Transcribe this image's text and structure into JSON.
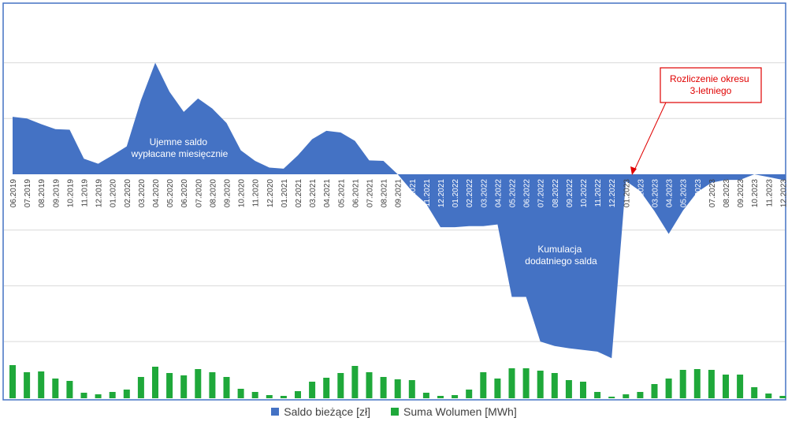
{
  "chart_data": {
    "type": "area",
    "categories": [
      "06.2019",
      "07.2019",
      "08.2019",
      "09.2019",
      "10.2019",
      "11.2019",
      "12.2019",
      "01.2020",
      "02.2020",
      "03.2020",
      "04.2020",
      "05.2020",
      "06.2020",
      "07.2020",
      "08.2020",
      "09.2020",
      "10.2020",
      "11.2020",
      "12.2020",
      "01.2021",
      "02.2021",
      "03.2021",
      "04.2021",
      "05.2021",
      "06.2021",
      "07.2021",
      "08.2021",
      "09.2021",
      "10.2021",
      "11.2021",
      "12.2021",
      "01.2022",
      "02.2022",
      "03.2022",
      "04.2022",
      "05.2022",
      "06.2022",
      "07.2022",
      "08.2022",
      "09.2022",
      "10.2022",
      "11.2022",
      "12.2022",
      "01.2023",
      "02.2023",
      "03.2023",
      "04.2023",
      "05.2023",
      "06.2023",
      "07.2023",
      "08.2023",
      "09.2023",
      "10.2023",
      "11.2023",
      "12.2023"
    ],
    "series": [
      {
        "name": "Saldo bieżące [zł]",
        "color": "#4472C4",
        "values": [
          1.03,
          1.0,
          0.9,
          0.81,
          0.8,
          0.28,
          0.19,
          0.34,
          0.5,
          1.33,
          2.0,
          1.48,
          1.12,
          1.36,
          1.18,
          0.92,
          0.43,
          0.24,
          0.12,
          0.1,
          0.34,
          0.63,
          0.78,
          0.75,
          0.6,
          0.25,
          0.24,
          0.0,
          -0.3,
          -0.53,
          -0.95,
          -0.95,
          -0.93,
          -0.93,
          -0.9,
          -2.2,
          -2.2,
          -3.0,
          -3.08,
          -3.12,
          -3.15,
          -3.18,
          -3.3,
          -0.12,
          -0.3,
          -0.66,
          -1.07,
          -0.65,
          -0.32,
          -0.15,
          -0.1,
          -0.1,
          0.0,
          -0.05,
          -0.1
        ]
      },
      {
        "name": "Suma Wolumen [MWh]",
        "color": "#1FA83A",
        "values": [
          42,
          33,
          34,
          25,
          22,
          7,
          5,
          8,
          11,
          27,
          40,
          32,
          29,
          37,
          33,
          27,
          12,
          8,
          4,
          3,
          9,
          21,
          26,
          32,
          41,
          33,
          27,
          24,
          23,
          7,
          3,
          4,
          11,
          33,
          25,
          38,
          38,
          35,
          32,
          23,
          21,
          8,
          2,
          5,
          8,
          18,
          25,
          36,
          37,
          36,
          30,
          30,
          14,
          6,
          3
        ]
      }
    ],
    "legend": "bottom",
    "grid": true,
    "annotations": [
      {
        "text": "Ujemne saldo wypłacane miesięcznie"
      },
      {
        "text": "Kumulacja dodatniego salda"
      },
      {
        "text": "Rozliczenie okresu 3-letniego"
      }
    ],
    "callout_color": "#E00000"
  }
}
